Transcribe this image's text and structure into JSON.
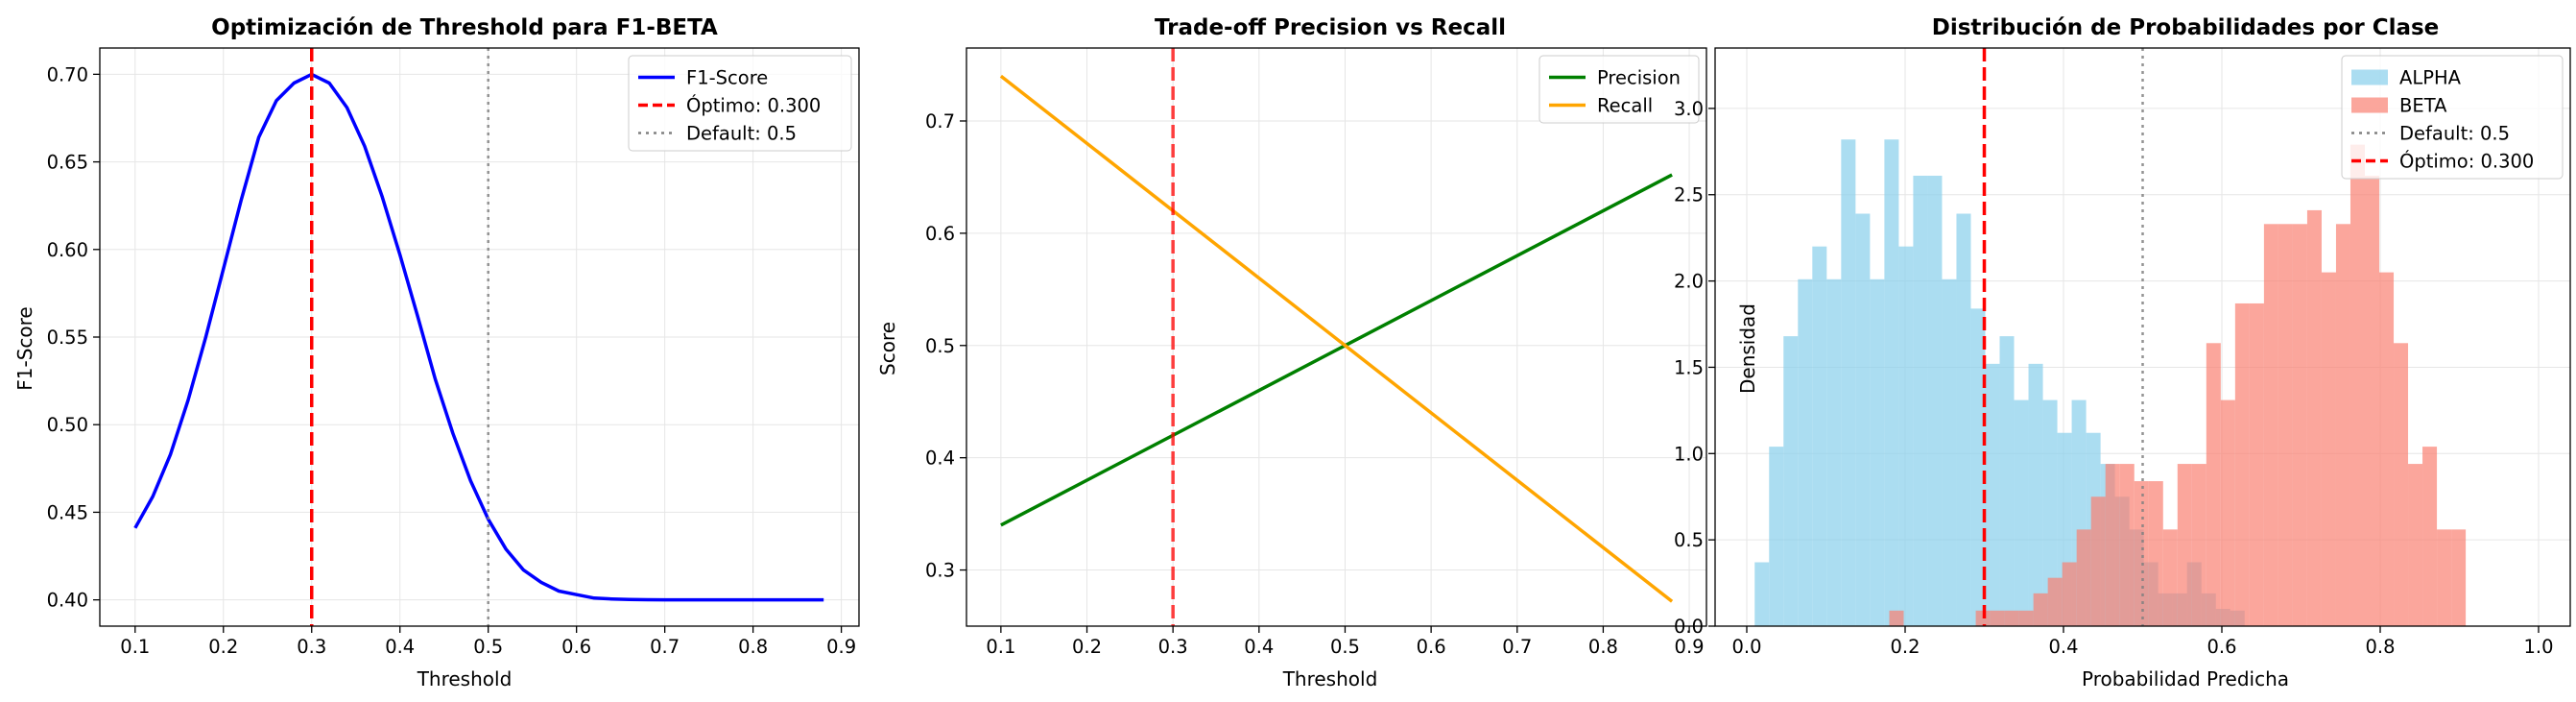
{
  "chart_data": [
    {
      "type": "line",
      "title": "Optimización de Threshold para F1-BETA",
      "xlabel": "Threshold",
      "ylabel": "F1-Score",
      "xlim": [
        0.06,
        0.92
      ],
      "ylim": [
        0.385,
        0.715
      ],
      "xticks": [
        "0.1",
        "0.2",
        "0.3",
        "0.4",
        "0.5",
        "0.6",
        "0.7",
        "0.8",
        "0.9"
      ],
      "xtick_values": [
        0.1,
        0.2,
        0.3,
        0.4,
        0.5,
        0.6,
        0.7,
        0.8,
        0.9
      ],
      "yticks": [
        "0.40",
        "0.45",
        "0.50",
        "0.55",
        "0.60",
        "0.65",
        "0.70"
      ],
      "ytick_values": [
        0.4,
        0.45,
        0.5,
        0.55,
        0.6,
        0.65,
        0.7
      ],
      "grid": true,
      "legend_position": "top-right",
      "series": [
        {
          "name": "F1-Score",
          "color": "#0000ff",
          "style": "solid",
          "x": [
            0.1,
            0.12,
            0.14,
            0.16,
            0.18,
            0.2,
            0.22,
            0.24,
            0.26,
            0.28,
            0.3,
            0.32,
            0.34,
            0.36,
            0.38,
            0.4,
            0.42,
            0.44,
            0.46,
            0.48,
            0.5,
            0.52,
            0.54,
            0.56,
            0.58,
            0.6,
            0.62,
            0.64,
            0.66,
            0.68,
            0.7,
            0.72,
            0.74,
            0.76,
            0.78,
            0.8,
            0.82,
            0.84,
            0.86,
            0.88
          ],
          "y": [
            0.441,
            0.459,
            0.483,
            0.514,
            0.55,
            0.589,
            0.628,
            0.664,
            0.685,
            0.695,
            0.7,
            0.695,
            0.681,
            0.659,
            0.63,
            0.597,
            0.562,
            0.526,
            0.495,
            0.468,
            0.446,
            0.429,
            0.417,
            0.41,
            0.405,
            0.403,
            0.401,
            0.4005,
            0.4002,
            0.4001,
            0.4,
            0.4,
            0.4,
            0.4,
            0.4,
            0.4,
            0.4,
            0.4,
            0.4,
            0.4
          ]
        },
        {
          "name": "Óptimo: 0.300",
          "color": "#ff0000",
          "style": "dashed",
          "vline": 0.3
        },
        {
          "name": "Default: 0.5",
          "color": "#808080",
          "style": "dotted",
          "vline": 0.5
        }
      ]
    },
    {
      "type": "line",
      "title": "Trade-off Precision vs Recall",
      "xlabel": "Threshold",
      "ylabel": "Score",
      "xlim": [
        0.06,
        0.92
      ],
      "ylim": [
        0.25,
        0.765
      ],
      "xticks": [
        "0.1",
        "0.2",
        "0.3",
        "0.4",
        "0.5",
        "0.6",
        "0.7",
        "0.8",
        "0.9"
      ],
      "xtick_values": [
        0.1,
        0.2,
        0.3,
        0.4,
        0.5,
        0.6,
        0.7,
        0.8,
        0.9
      ],
      "yticks": [
        "0.3",
        "0.4",
        "0.5",
        "0.6",
        "0.7"
      ],
      "ytick_values": [
        0.3,
        0.4,
        0.5,
        0.6,
        0.7
      ],
      "grid": true,
      "legend_position": "top-right",
      "threshold_line": {
        "x": 0.3,
        "color": "#ff0000",
        "style": "dashed"
      },
      "series": [
        {
          "name": "Precision",
          "color": "#008000",
          "x": [
            0.1,
            0.88
          ],
          "y": [
            0.34,
            0.652
          ]
        },
        {
          "name": "Recall",
          "color": "#ffa500",
          "x": [
            0.1,
            0.88
          ],
          "y": [
            0.74,
            0.272
          ]
        }
      ]
    },
    {
      "type": "histogram",
      "title": "Distribución de Probabilidades por Clase",
      "xlabel": "Probabilidad Predicha",
      "ylabel": "Densidad",
      "xlim": [
        -0.04,
        1.04
      ],
      "ylim": [
        0,
        3.35
      ],
      "xticks": [
        "0.0",
        "0.2",
        "0.4",
        "0.6",
        "0.8",
        "1.0"
      ],
      "xtick_values": [
        0,
        0.2,
        0.4,
        0.6,
        0.8,
        1.0
      ],
      "yticks": [
        "0.0",
        "0.5",
        "1.0",
        "1.5",
        "2.0",
        "2.5",
        "3.0"
      ],
      "ytick_values": [
        0,
        0.5,
        1.0,
        1.5,
        2.0,
        2.5,
        3.0
      ],
      "grid": true,
      "legend_position": "top-right",
      "series": [
        {
          "name": "ALPHA",
          "color": "#87ceeb",
          "bin_start": 0.01,
          "bin_width": 0.0182,
          "values": [
            0.37,
            1.04,
            1.68,
            2.01,
            2.2,
            2.01,
            2.82,
            2.39,
            2.01,
            2.82,
            2.2,
            2.61,
            2.61,
            2.01,
            2.39,
            1.84,
            1.52,
            1.68,
            1.31,
            1.52,
            1.31,
            1.12,
            1.31,
            1.12,
            0.94,
            0.75,
            0.56,
            0.37,
            0.19,
            0.19,
            0.37,
            0.19,
            0.1,
            0.09
          ]
        },
        {
          "name": "BETA",
          "color": "#fa8072",
          "bin_start": 0.18,
          "bin_width": 0.0182,
          "values": [
            0.09,
            0,
            0,
            0,
            0,
            0,
            0.09,
            0.09,
            0.09,
            0.09,
            0.19,
            0.28,
            0.37,
            0.56,
            0.75,
            0.94,
            0.94,
            0.84,
            0.84,
            0.56,
            0.94,
            0.94,
            1.64,
            1.31,
            1.87,
            1.87,
            2.33,
            2.33,
            2.33,
            2.41,
            2.05,
            2.33,
            2.79,
            2.61,
            2.05,
            1.64,
            0.94,
            1.04,
            0.56,
            0.56
          ]
        },
        {
          "name": "Default: 0.5",
          "color": "#808080",
          "style": "dotted",
          "vline": 0.5
        },
        {
          "name": "Óptimo: 0.300",
          "color": "#ff0000",
          "style": "dashed",
          "vline": 0.3
        }
      ]
    }
  ]
}
